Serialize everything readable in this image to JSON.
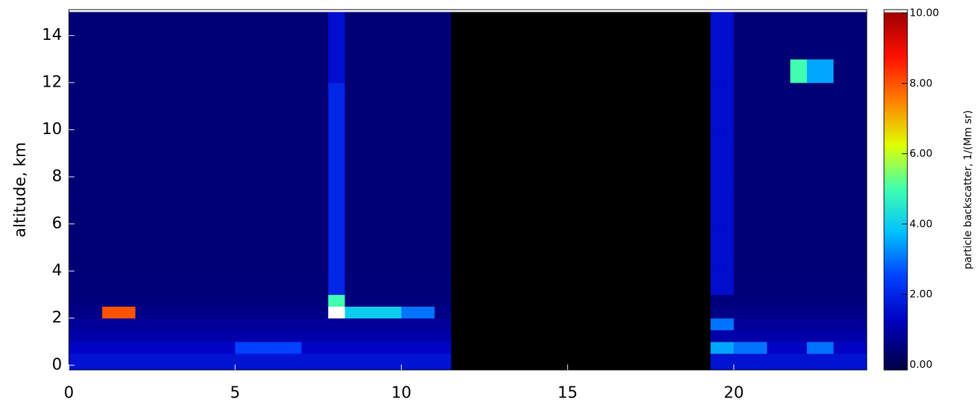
{
  "chart_data": {
    "type": "heatmap",
    "y_label": "altitude,  km",
    "colorbar_label": "particle backscatter, 1/(Mm sr)",
    "x_edges": [
      0,
      1,
      2,
      3,
      4,
      5,
      6,
      7,
      7.8,
      8.3,
      9,
      10,
      11,
      11.5,
      19.3,
      20,
      21,
      21.7,
      22.2,
      23,
      24
    ],
    "y_edges": [
      -0.2,
      0.5,
      1,
      1.5,
      2,
      2.5,
      3,
      4,
      6,
      8,
      10,
      12,
      13,
      15
    ],
    "values": [
      [
        1.6,
        1.6,
        1.6,
        1.6,
        1.6,
        1.6,
        1.6,
        1.6,
        1.6,
        1.6,
        1.6,
        1.6,
        1.6,
        null,
        1.6,
        1.6,
        1.6,
        1.6,
        1.6,
        1.6
      ],
      [
        1.3,
        1.3,
        1.3,
        1.3,
        1.3,
        2.5,
        2.5,
        1.3,
        1.3,
        1.3,
        1.3,
        1.3,
        1.3,
        null,
        3.5,
        3,
        1.3,
        1.3,
        3,
        1.3
      ],
      [
        1.0,
        1.0,
        1.0,
        1.0,
        1.0,
        1.0,
        1.0,
        1.0,
        1.0,
        1.0,
        1.0,
        1.0,
        1.0,
        null,
        1.0,
        1.0,
        1.0,
        1.0,
        1.0,
        1.0
      ],
      [
        0.8,
        0.8,
        0.8,
        0.8,
        0.8,
        0.8,
        0.8,
        0.8,
        0.8,
        0.8,
        0.8,
        0.8,
        0.8,
        null,
        3,
        0.8,
        0.8,
        0.8,
        0.8,
        0.8
      ],
      [
        0.6,
        8,
        0.6,
        0.6,
        0.6,
        0.6,
        0.6,
        0.6,
        10.5,
        4,
        4,
        3,
        0.6,
        null,
        0.6,
        0.6,
        0.6,
        0.6,
        0.6,
        0.6
      ],
      [
        0.5,
        0.5,
        0.5,
        0.5,
        0.5,
        0.5,
        0.5,
        0.5,
        5,
        0.5,
        0.5,
        0.5,
        0.5,
        null,
        0.5,
        0.5,
        0.5,
        0.5,
        0.5,
        0.5
      ],
      [
        0.45,
        0.45,
        0.45,
        0.45,
        0.45,
        0.45,
        0.45,
        0.45,
        2,
        0.45,
        0.45,
        0.45,
        0.45,
        null,
        1.5,
        0.45,
        0.45,
        0.45,
        0.45,
        0.45
      ],
      [
        0.4,
        0.4,
        0.4,
        0.4,
        0.4,
        0.4,
        0.4,
        0.4,
        2,
        0.4,
        0.4,
        0.4,
        0.4,
        null,
        1.5,
        0.4,
        0.4,
        0.4,
        0.4,
        0.4
      ],
      [
        0.4,
        0.4,
        0.4,
        0.4,
        0.4,
        0.4,
        0.4,
        0.4,
        2,
        0.4,
        0.4,
        0.4,
        0.4,
        null,
        1.5,
        0.4,
        0.4,
        0.4,
        0.4,
        0.4
      ],
      [
        0.4,
        0.4,
        0.4,
        0.4,
        0.4,
        0.4,
        0.4,
        0.4,
        2,
        0.4,
        0.4,
        0.4,
        0.4,
        null,
        1.5,
        0.4,
        0.4,
        0.4,
        0.4,
        0.4
      ],
      [
        0.4,
        0.4,
        0.4,
        0.4,
        0.4,
        0.4,
        0.4,
        0.4,
        2,
        0.4,
        0.4,
        0.4,
        0.4,
        null,
        1.5,
        0.4,
        0.4,
        0.4,
        0.4,
        0.4
      ],
      [
        0.4,
        0.4,
        0.4,
        0.4,
        0.4,
        0.4,
        0.4,
        0.4,
        1.5,
        0.4,
        0.4,
        0.4,
        0.4,
        null,
        1.5,
        0.4,
        0.4,
        5,
        3.5,
        0.4
      ],
      [
        0.4,
        0.4,
        0.4,
        0.4,
        0.4,
        0.4,
        0.4,
        0.4,
        1.5,
        0.4,
        0.4,
        0.4,
        0.4,
        null,
        1.5,
        0.4,
        0.4,
        0.4,
        0.4,
        0.4
      ]
    ],
    "xlim": [
      0,
      24
    ],
    "xticks": [
      0,
      5,
      10,
      15,
      20
    ],
    "ylim": [
      -0.2,
      15.1
    ],
    "yticks": [
      0,
      2,
      4,
      6,
      8,
      10,
      12,
      14
    ],
    "color_range": [
      0,
      10
    ],
    "colorscale": [
      "#000050",
      "#0000c0",
      "#0040ff",
      "#00c0ff",
      "#40ffb0",
      "#e0ff00",
      "#ff8000",
      "#ff1000",
      "#a00000"
    ],
    "over_color": "#ffffff",
    "nodata_color": "#000000",
    "colorbar_lim": [
      -0.15,
      10.1
    ],
    "colorbar_ticks": [
      {
        "value": 0,
        "label": "0.00"
      },
      {
        "value": 2,
        "label": "2.00"
      },
      {
        "value": 4,
        "label": "4.00"
      },
      {
        "value": 6,
        "label": "6.00"
      },
      {
        "value": 8,
        "label": "8.00"
      },
      {
        "value": 10,
        "label": "10.00"
      }
    ]
  }
}
